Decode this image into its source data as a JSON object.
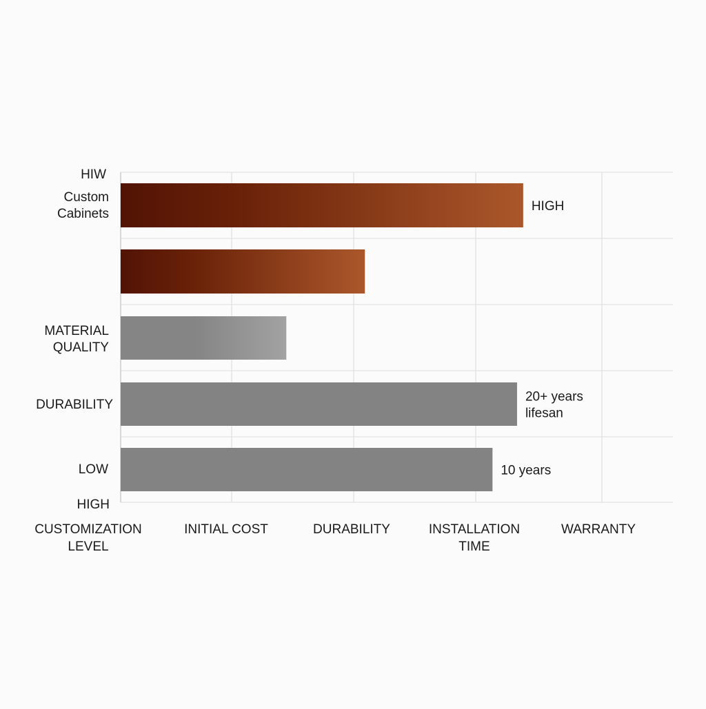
{
  "chart_data": {
    "type": "bar",
    "orientation": "horizontal",
    "title": "",
    "xlabel": "",
    "ylabel": "",
    "grid": true,
    "legend": "none",
    "y_tick_labels": [
      {
        "id": "hiw",
        "text": "HIW"
      },
      {
        "id": "custom-cabinets",
        "text": "Custom\nCabinets"
      },
      {
        "id": "material-quality",
        "text": "MATERIAL\nQUALITY"
      },
      {
        "id": "durability",
        "text": "DURABILITY"
      },
      {
        "id": "low",
        "text": "LOW"
      },
      {
        "id": "high",
        "text": "HIGH"
      }
    ],
    "x_tick_labels": [
      "CUSTOMIZATION\nLEVEL",
      "INITIAL COST",
      "DURABILITY",
      "INSTALLATION\nTIME",
      "WARRANTY"
    ],
    "bars": [
      {
        "category": "Custom Cabinets",
        "value": 3.28,
        "style": "brown",
        "label": "HIGH"
      },
      {
        "category": "",
        "value": 1.99,
        "style": "brown",
        "label": ""
      },
      {
        "category": "MATERIAL QUALITY",
        "value": 1.35,
        "style": "gray-light",
        "label": ""
      },
      {
        "category": "DURABILITY",
        "value": 3.23,
        "style": "gray",
        "label": "20+ years\nlifesan"
      },
      {
        "category": "LOW",
        "value": 3.03,
        "style": "gray",
        "label": "10 years"
      }
    ],
    "xlim": [
      0,
      4.5
    ],
    "colors": {
      "brown_start": "#521305",
      "brown_mid": "#6a2208",
      "brown_end": "#ab572b",
      "gray": "#838383",
      "gray_light_start": "#858585",
      "gray_light_end": "#a2a2a2",
      "grid": "#e2e2e2",
      "axis": "#cccccc",
      "text": "#1a1a1a"
    }
  }
}
